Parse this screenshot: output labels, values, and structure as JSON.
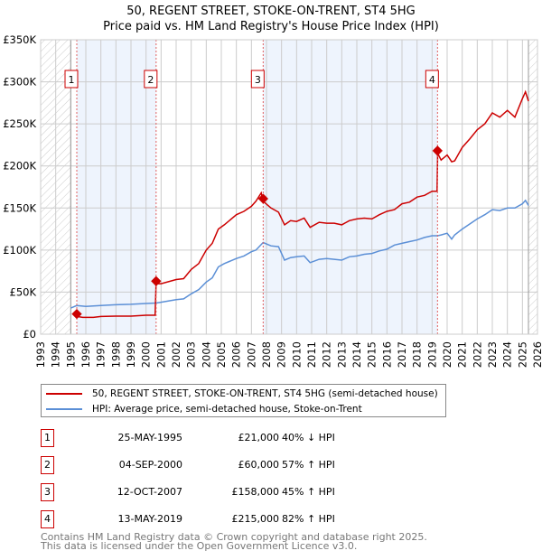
{
  "title_line1": "50, REGENT STREET, STOKE-ON-TRENT, ST4 5HG",
  "title_line2": "Price paid vs. HM Land Registry's House Price Index (HPI)",
  "colors": {
    "property": "#cc0000",
    "hpi": "#5b8fd6",
    "band": "#eef4fd",
    "grid": "#cccccc"
  },
  "chart_data": {
    "type": "line",
    "xlim": [
      1993,
      2026
    ],
    "ylim": [
      0,
      350000
    ],
    "yticks": [
      {
        "v": 0,
        "label": "£0"
      },
      {
        "v": 50000,
        "label": "£50K"
      },
      {
        "v": 100000,
        "label": "£100K"
      },
      {
        "v": 150000,
        "label": "£150K"
      },
      {
        "v": 200000,
        "label": "£200K"
      },
      {
        "v": 250000,
        "label": "£250K"
      },
      {
        "v": 300000,
        "label": "£300K"
      },
      {
        "v": 350000,
        "label": "£350K"
      }
    ],
    "xticks": [
      "1993",
      "1994",
      "1995",
      "1996",
      "1997",
      "1998",
      "1999",
      "2000",
      "2001",
      "2002",
      "2003",
      "2004",
      "2005",
      "2006",
      "2007",
      "2008",
      "2009",
      "2010",
      "2011",
      "2012",
      "2013",
      "2014",
      "2015",
      "2016",
      "2017",
      "2018",
      "2019",
      "2020",
      "2021",
      "2022",
      "2023",
      "2024",
      "2025",
      "2026"
    ],
    "data_range": [
      1995.0,
      2025.4
    ],
    "series": [
      {
        "name": "50, REGENT STREET, STOKE-ON-TRENT, ST4 5HG (semi-detached house)",
        "color": "#cc0000",
        "x": [
          1995.4,
          1995.8,
          1996.5,
          1997,
          1998,
          1999,
          2000,
          2000.6,
          2000.67,
          2001,
          2002,
          2002.5,
          2003,
          2003.5,
          2004,
          2004.4,
          2004.8,
          2005.2,
          2006,
          2006.5,
          2007,
          2007.3,
          2007.65,
          2007.78,
          2008.3,
          2008.8,
          2009.2,
          2009.6,
          2010,
          2010.5,
          2010.9,
          2011.5,
          2012,
          2012.5,
          2013,
          2013.5,
          2014,
          2014.5,
          2015,
          2015.5,
          2016,
          2016.5,
          2017,
          2017.5,
          2018,
          2018.5,
          2019,
          2019.33,
          2019.37,
          2019.6,
          2020,
          2020.3,
          2020.5,
          2021,
          2021.5,
          2022,
          2022.5,
          2023,
          2023.5,
          2024,
          2024.5,
          2025,
          2025.2,
          2025.4
        ],
        "y": [
          21000,
          20000,
          20000,
          21000,
          21500,
          21500,
          22500,
          22500,
          60000,
          60000,
          65000,
          66000,
          77000,
          84000,
          100000,
          108000,
          125000,
          130000,
          142000,
          146000,
          152000,
          158000,
          168000,
          158000,
          150000,
          145000,
          130000,
          135000,
          134000,
          138000,
          127000,
          133000,
          132000,
          132000,
          130000,
          135000,
          137000,
          138000,
          137000,
          142000,
          146000,
          148000,
          155000,
          157000,
          163000,
          165000,
          170000,
          170000,
          215000,
          207000,
          213000,
          205000,
          206000,
          222000,
          232000,
          243000,
          250000,
          263000,
          258000,
          266000,
          258000,
          280000,
          288000,
          277000
        ]
      },
      {
        "name": "HPI: Average price, semi-detached house, Stoke-on-Trent",
        "color": "#5b8fd6",
        "x": [
          1995,
          1995.4,
          1996,
          1997,
          1998,
          1999,
          2000,
          2000.67,
          2001,
          2002,
          2002.5,
          2003,
          2003.5,
          2004,
          2004.4,
          2004.8,
          2005.2,
          2006,
          2006.5,
          2007,
          2007.3,
          2007.78,
          2008.3,
          2008.8,
          2009.2,
          2009.6,
          2010,
          2010.5,
          2010.9,
          2011.5,
          2012,
          2012.5,
          2013,
          2013.5,
          2014,
          2014.5,
          2015,
          2015.5,
          2016,
          2016.5,
          2017,
          2017.5,
          2018,
          2018.5,
          2019,
          2019.37,
          2019.6,
          2020,
          2020.3,
          2020.5,
          2021,
          2021.5,
          2022,
          2022.5,
          2023,
          2023.5,
          2024,
          2024.5,
          2025,
          2025.2,
          2025.4
        ],
        "y": [
          31000,
          34000,
          33000,
          34000,
          35000,
          35500,
          36500,
          37000,
          38000,
          41000,
          42000,
          48000,
          53000,
          62000,
          67000,
          80000,
          84000,
          90000,
          93000,
          98000,
          100000,
          109000,
          105000,
          104000,
          88000,
          91000,
          92000,
          93000,
          85000,
          89000,
          90000,
          89000,
          88000,
          92000,
          93000,
          95000,
          96000,
          99000,
          101000,
          106000,
          108000,
          110000,
          112000,
          115000,
          117000,
          117000,
          118000,
          120000,
          113000,
          118000,
          125000,
          131000,
          137000,
          142000,
          148000,
          147000,
          150000,
          150000,
          155000,
          159000,
          153000
        ]
      }
    ],
    "bands": [
      [
        1995.4,
        2000.67
      ],
      [
        2007.78,
        2019.36
      ]
    ],
    "sales": [
      {
        "label": "1",
        "x": 1995.4,
        "y": 21000,
        "date": "25-MAY-1995",
        "price": "£21,000",
        "hpi": "40% ↓ HPI"
      },
      {
        "label": "2",
        "x": 2000.67,
        "y": 60000,
        "date": "04-SEP-2000",
        "price": "£60,000",
        "hpi": "57% ↑ HPI"
      },
      {
        "label": "3",
        "x": 2007.78,
        "y": 158000,
        "date": "12-OCT-2007",
        "price": "£158,000",
        "hpi": "45% ↑ HPI"
      },
      {
        "label": "4",
        "x": 2019.36,
        "y": 215000,
        "date": "13-MAY-2019",
        "price": "£215,000",
        "hpi": "82% ↑ HPI"
      }
    ],
    "legend_position": "bottom"
  },
  "footer_line1": "Contains HM Land Registry data © Crown copyright and database right 2025.",
  "footer_line2": "This data is licensed under the Open Government Licence v3.0."
}
